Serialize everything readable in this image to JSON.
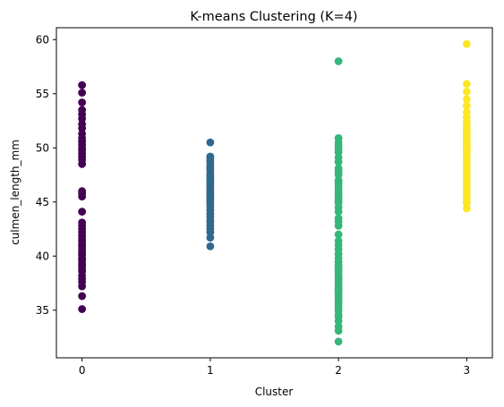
{
  "chart_data": {
    "type": "scatter",
    "title": "K-means Clustering (K=4)",
    "xlabel": "Cluster",
    "ylabel": "culmen_length_mm",
    "xlim": [
      -0.2,
      3.2
    ],
    "ylim": [
      30.6,
      61.1
    ],
    "xticks": [
      0,
      1,
      2,
      3
    ],
    "yticks": [
      35,
      40,
      45,
      50,
      55,
      60
    ],
    "grid": false,
    "legend": "none",
    "series": [
      {
        "cluster": 0,
        "color": "#440154",
        "x": [
          0,
          0,
          0,
          0,
          0,
          0,
          0,
          0,
          0,
          0,
          0,
          0,
          0,
          0,
          0,
          0,
          0,
          0,
          0,
          0,
          0,
          0,
          0,
          0,
          0,
          0,
          0,
          0,
          0,
          0,
          0,
          0,
          0,
          0,
          0,
          0,
          0,
          0,
          0,
          0,
          0,
          0,
          0,
          0,
          0,
          0
        ],
        "y": [
          35.1,
          36.3,
          37.2,
          37.6,
          37.9,
          38.2,
          38.6,
          38.8,
          39.1,
          39.3,
          39.6,
          39.8,
          40.1,
          40.3,
          40.6,
          40.9,
          41.1,
          41.4,
          41.6,
          41.9,
          42.2,
          42.5,
          42.8,
          43.1,
          44.1,
          45.5,
          45.8,
          46.0,
          48.5,
          48.9,
          49.2,
          49.5,
          49.8,
          50.0,
          50.3,
          50.6,
          50.9,
          51.3,
          51.8,
          52.2,
          52.7,
          53.1,
          53.5,
          54.2,
          55.1,
          55.8
        ]
      },
      {
        "cluster": 1,
        "color": "#31688e",
        "x": [
          1,
          1,
          1,
          1,
          1,
          1,
          1,
          1,
          1,
          1,
          1,
          1,
          1,
          1,
          1,
          1,
          1,
          1,
          1,
          1,
          1,
          1,
          1,
          1,
          1,
          1,
          1,
          1,
          1,
          1,
          1,
          1,
          1,
          1
        ],
        "y": [
          40.9,
          41.7,
          42.2,
          42.5,
          42.8,
          43.1,
          43.3,
          43.6,
          43.9,
          44.2,
          44.5,
          44.8,
          45.0,
          45.2,
          45.4,
          45.6,
          45.8,
          46.0,
          46.2,
          46.4,
          46.6,
          46.8,
          47.0,
          47.2,
          47.4,
          47.6,
          47.9,
          48.1,
          48.3,
          48.6,
          48.8,
          49.0,
          49.2,
          50.5
        ]
      },
      {
        "cluster": 2,
        "color": "#35b779",
        "x": [
          2,
          2,
          2,
          2,
          2,
          2,
          2,
          2,
          2,
          2,
          2,
          2,
          2,
          2,
          2,
          2,
          2,
          2,
          2,
          2,
          2,
          2,
          2,
          2,
          2,
          2,
          2,
          2,
          2,
          2,
          2,
          2,
          2,
          2,
          2,
          2,
          2,
          2,
          2,
          2,
          2,
          2,
          2,
          2,
          2,
          2,
          2,
          2,
          2,
          2,
          2,
          2,
          2,
          2,
          2,
          2,
          2
        ],
        "y": [
          32.1,
          33.1,
          33.5,
          34.0,
          34.4,
          34.6,
          35.0,
          35.3,
          35.6,
          35.9,
          36.2,
          36.4,
          36.7,
          36.9,
          37.2,
          37.5,
          37.8,
          38.0,
          38.3,
          38.6,
          38.9,
          39.2,
          39.5,
          39.8,
          40.2,
          40.6,
          41.0,
          41.4,
          42.0,
          42.8,
          43.2,
          43.5,
          44.1,
          44.5,
          44.9,
          45.2,
          45.5,
          45.8,
          46.1,
          46.4,
          46.7,
          47.0,
          47.5,
          47.8,
          48.1,
          48.7,
          49.1,
          49.6,
          49.9,
          50.2,
          50.5,
          50.9,
          58.0,
          46.9,
          45.1,
          37.0,
          39.0
        ]
      },
      {
        "cluster": 3,
        "color": "#fde725",
        "x": [
          3,
          3,
          3,
          3,
          3,
          3,
          3,
          3,
          3,
          3,
          3,
          3,
          3,
          3,
          3,
          3,
          3,
          3,
          3,
          3,
          3,
          3,
          3,
          3,
          3,
          3,
          3,
          3,
          3,
          3,
          3,
          3,
          3,
          3,
          3,
          3,
          3,
          3,
          3
        ],
        "y": [
          44.4,
          44.9,
          45.2,
          45.5,
          45.8,
          46.1,
          46.4,
          46.7,
          47.0,
          47.3,
          47.6,
          47.9,
          48.2,
          48.5,
          48.8,
          49.1,
          49.3,
          49.5,
          49.7,
          49.9,
          50.1,
          50.3,
          50.5,
          50.7,
          50.9,
          51.1,
          51.3,
          51.5,
          51.8,
          52.1,
          52.4,
          52.8,
          53.3,
          53.9,
          54.5,
          55.2,
          55.9,
          59.6,
          50.0
        ]
      }
    ]
  }
}
